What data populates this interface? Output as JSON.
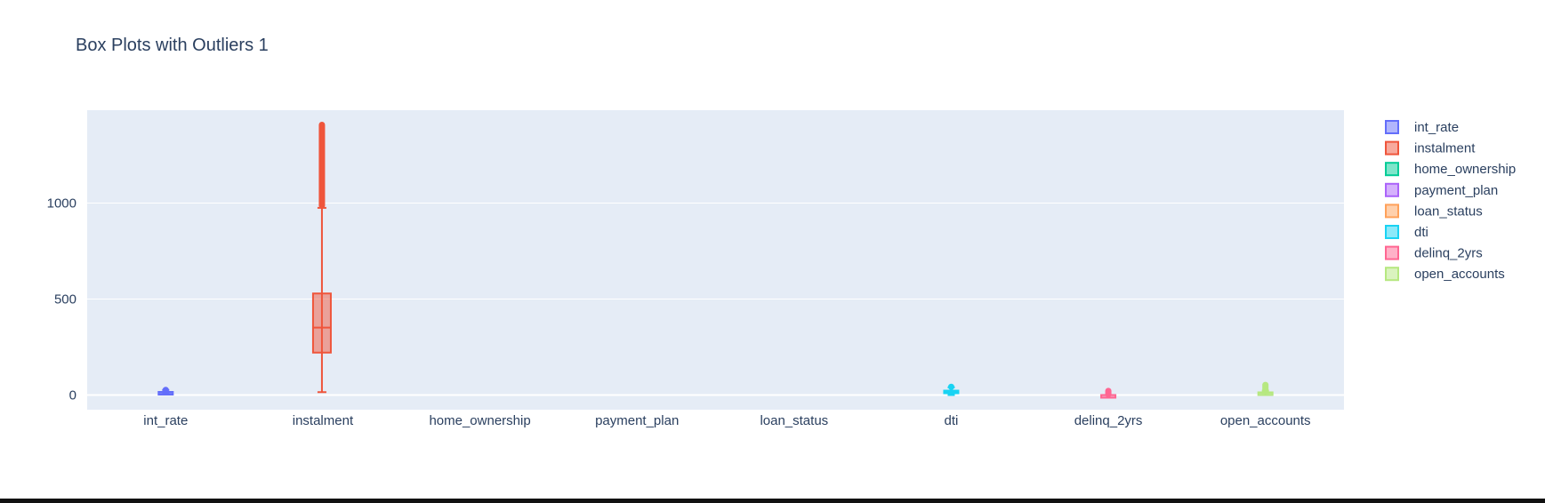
{
  "chart_data": {
    "type": "box",
    "title": "Box Plots with Outliers 1",
    "xlabel": "",
    "ylabel": "",
    "ylim": [
      -80,
      1500
    ],
    "yticks": [
      0,
      500,
      1000
    ],
    "grid": true,
    "legend_position": "right",
    "categories": [
      "int_rate",
      "instalment",
      "home_ownership",
      "payment_plan",
      "loan_status",
      "dti",
      "delinq_2yrs",
      "open_accounts"
    ],
    "series": [
      {
        "name": "int_rate",
        "color": "#636efa",
        "min": 5.3,
        "q1": 9.5,
        "median": 12.8,
        "q3": 16.2,
        "max": 26.1,
        "outliers_low": 26.1,
        "outliers_high": 29
      },
      {
        "name": "instalment",
        "color": "#ef553b",
        "min": 15,
        "q1": 221,
        "median": 351,
        "q3": 529,
        "max": 975,
        "outliers_low": 985,
        "outliers_high": 1410
      },
      {
        "name": "home_ownership",
        "color": "#00cc96",
        "min": null,
        "q1": null,
        "median": null,
        "q3": null,
        "max": null,
        "outliers_low": null,
        "outliers_high": null
      },
      {
        "name": "payment_plan",
        "color": "#ab63fa",
        "min": null,
        "q1": null,
        "median": null,
        "q3": null,
        "max": null,
        "outliers_low": null,
        "outliers_high": null
      },
      {
        "name": "loan_status",
        "color": "#ffa15a",
        "min": null,
        "q1": null,
        "median": null,
        "q3": null,
        "max": null,
        "outliers_low": null,
        "outliers_high": null
      },
      {
        "name": "dti",
        "color": "#19d3f3",
        "min": 0,
        "q1": 11,
        "median": 17,
        "q3": 23,
        "max": 40,
        "outliers_low": 40,
        "outliers_high": 45
      },
      {
        "name": "delinq_2yrs",
        "color": "#ff6692",
        "min": 0,
        "q1": 0,
        "median": 0,
        "q3": 0,
        "max": 0,
        "outliers_low": 1,
        "outliers_high": 24
      },
      {
        "name": "open_accounts",
        "color": "#b6e880",
        "min": 1,
        "q1": 8,
        "median": 11,
        "q3": 14,
        "max": 23,
        "outliers_low": 24,
        "outliers_high": 55
      }
    ]
  }
}
